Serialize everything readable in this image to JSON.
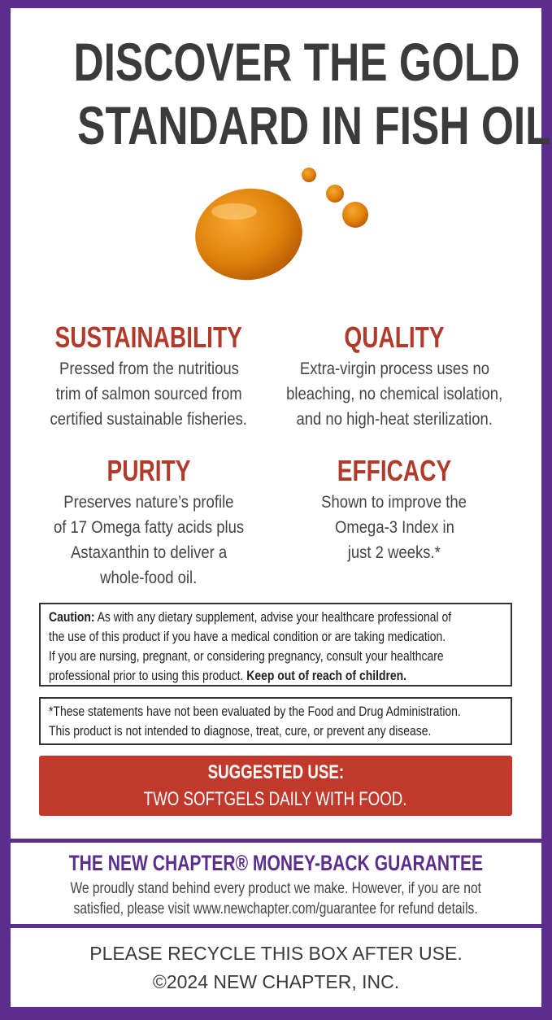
{
  "headline": {
    "line1": "DISCOVER THE GOLD",
    "line2": "STANDARD IN FISH OIL"
  },
  "image": {
    "icon": "oil-drop-icon",
    "color": "#e08a10"
  },
  "features": [
    {
      "title": "SUSTAINABILITY",
      "lines": [
        "Pressed from the nutritious",
        "trim of salmon sourced from",
        "certified sustainable fisheries."
      ]
    },
    {
      "title": "QUALITY",
      "lines": [
        "Extra-virgin process uses no",
        "bleaching, no chemical isolation,",
        "and no high-heat sterilization."
      ]
    },
    {
      "title": "PURITY",
      "lines": [
        "Preserves nature’s profile",
        "of 17 Omega fatty acids plus",
        "Astaxanthin to deliver a",
        "whole-food oil."
      ]
    },
    {
      "title": "EFFICACY",
      "lines": [
        "Shown to improve the",
        "Omega-3 Index in",
        "just 2 weeks.*"
      ]
    }
  ],
  "caution": {
    "label": "Caution:",
    "lines": [
      " As with any dietary supplement, advise your healthcare professional of",
      "the use of this product if you have a medical condition or are taking medication.",
      "If you are nursing, pregnant, or considering pregnancy, consult your healthcare",
      "professional prior to using this product. "
    ],
    "bold_end": "Keep out of reach of children."
  },
  "fda": {
    "lines": [
      "*These statements have not been evaluated by the Food and Drug Administration.",
      "This product is not intended to diagnose, treat, cure, or prevent any disease."
    ]
  },
  "suggested_use": {
    "title": "SUGGESTED USE:",
    "text": "TWO SOFTGELS DAILY WITH FOOD."
  },
  "guarantee": {
    "title": "THE NEW CHAPTER® MONEY-BACK GUARANTEE",
    "lines": [
      "We proudly stand behind every product we make. However, if you are not",
      "satisfied, please visit www.newchapter.com/guarantee for refund details."
    ]
  },
  "footer": {
    "recycle": "PLEASE RECYCLE THIS BOX AFTER USE.",
    "copyright": "©2024 NEW CHAPTER, INC."
  },
  "colors": {
    "border": "#5b2d8e",
    "heading": "#b23a2a",
    "suggested_bg": "#c0392b"
  }
}
